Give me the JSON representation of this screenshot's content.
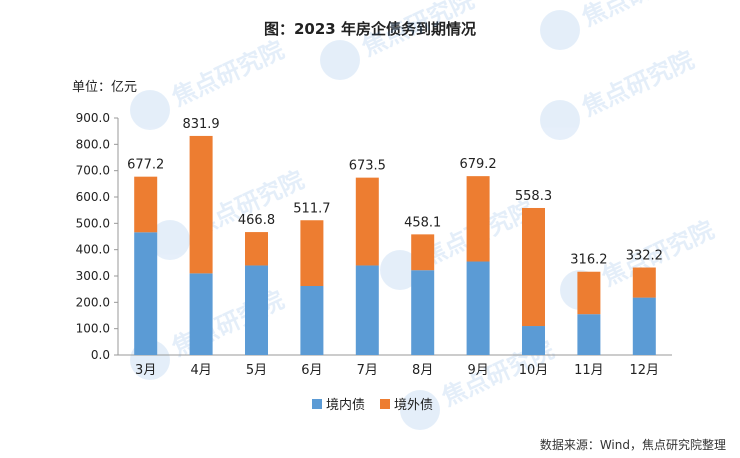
{
  "title": "图：2023 年房企债务到期情况",
  "unit_label": "单位：亿元",
  "source": "数据来源：Wind，焦点研究院整理",
  "watermark_text": "焦点研究院",
  "colors": {
    "domestic": "#5b9bd5",
    "overseas": "#ed7d31",
    "axis": "#999999",
    "text": "#222222"
  },
  "chart_data": {
    "type": "bar",
    "stacked": true,
    "categories": [
      "3月",
      "4月",
      "5月",
      "6月",
      "7月",
      "8月",
      "9月",
      "10月",
      "11月",
      "12月"
    ],
    "series": [
      {
        "name": "境内债",
        "values": [
          466,
          310,
          340,
          262,
          340,
          322,
          355,
          110,
          155,
          218
        ]
      },
      {
        "name": "境外债",
        "values": [
          211.2,
          521.9,
          126.8,
          249.7,
          333.5,
          136.1,
          324.2,
          448.3,
          161.2,
          114.2
        ]
      }
    ],
    "totals": [
      "677.2",
      "831.9",
      "466.8",
      "511.7",
      "673.5",
      "458.1",
      "679.2",
      "558.3",
      "316.2",
      "332.2"
    ],
    "ylim": [
      0,
      900
    ],
    "yticks": [
      "0.0",
      "100.0",
      "200.0",
      "300.0",
      "400.0",
      "500.0",
      "600.0",
      "700.0",
      "800.0",
      "900.0"
    ],
    "grid": false,
    "legend_position": "bottom"
  }
}
